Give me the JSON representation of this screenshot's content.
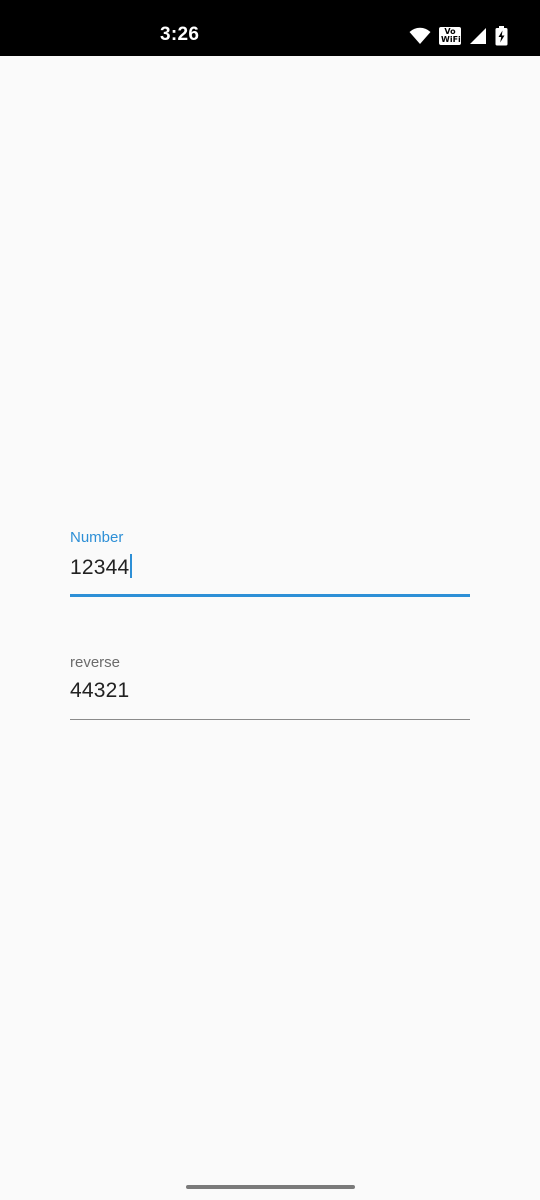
{
  "status_bar": {
    "time": "3:26",
    "vowifi_top": "Vo",
    "vowifi_bottom": "WiFi",
    "icons": [
      "wifi-icon",
      "vowifi-icon",
      "cell-signal-icon",
      "battery-charging-icon"
    ]
  },
  "form": {
    "number": {
      "label": "Number",
      "value": "12344"
    },
    "reverse": {
      "label": "reverse",
      "value": "44321"
    }
  },
  "colors": {
    "accent": "#2d8fd6",
    "background": "#fafafa",
    "status_bar": "#000000",
    "text": "#212121",
    "label_inactive": "#6b6b6b"
  }
}
